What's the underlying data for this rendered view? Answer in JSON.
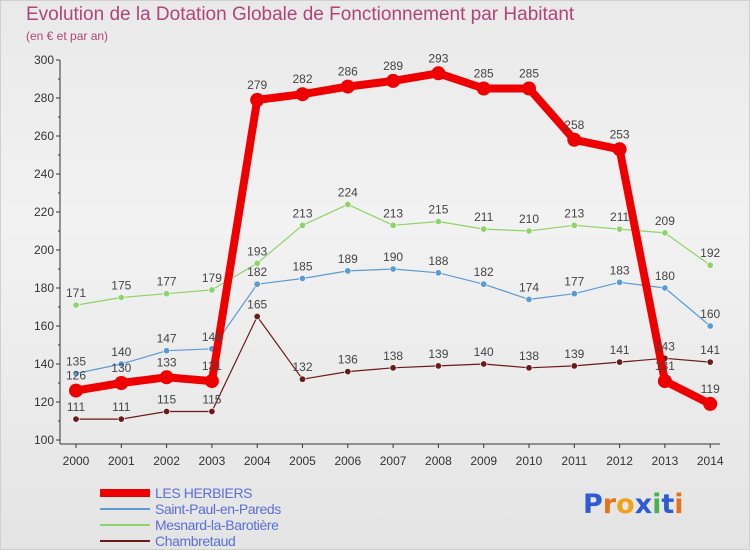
{
  "title": "Evolution de la Dotation Globale de Fonctionnement par Habitant",
  "subtitle": "(en € et par an)",
  "colors": {
    "title": "#b0457a",
    "legend_text": "#5a6fd6",
    "axis_text": "#333333"
  },
  "chart_data": {
    "type": "line",
    "categories": [
      "2000",
      "2001",
      "2002",
      "2003",
      "2004",
      "2005",
      "2006",
      "2007",
      "2008",
      "2009",
      "2010",
      "2011",
      "2012",
      "2013",
      "2014"
    ],
    "ylim": [
      100,
      300
    ],
    "yticks": [
      "100",
      "120",
      "140",
      "160",
      "180",
      "200",
      "220",
      "240",
      "260",
      "280",
      "300"
    ],
    "grid": false,
    "legend_position": "bottom-left",
    "series": [
      {
        "name": "Chambretaud",
        "color": "#6b1a1a",
        "width": 1.2,
        "point_radius": 3.2,
        "values": [
          111,
          111,
          115,
          115,
          165,
          132,
          136,
          138,
          139,
          140,
          138,
          139,
          141,
          143,
          141
        ]
      },
      {
        "name": "Mesnard-la-Barotière",
        "color": "#8fd36a",
        "width": 1.2,
        "point_radius": 3.2,
        "values": [
          171,
          175,
          177,
          179,
          193,
          213,
          224,
          213,
          215,
          211,
          210,
          213,
          211,
          209,
          192
        ]
      },
      {
        "name": "Saint-Paul-en-Pareds",
        "color": "#5b9bd5",
        "width": 1.2,
        "point_radius": 3.2,
        "values": [
          135,
          140,
          147,
          148,
          182,
          185,
          189,
          190,
          188,
          182,
          174,
          177,
          183,
          180,
          160
        ]
      },
      {
        "name": "LES HERBIERS",
        "color": "#ee0000",
        "width": 8,
        "point_radius": 7,
        "values": [
          126,
          130,
          133,
          131,
          279,
          282,
          286,
          289,
          293,
          285,
          285,
          258,
          253,
          131,
          119
        ]
      }
    ]
  },
  "legend": [
    {
      "name": "LES HERBIERS",
      "color": "#ee0000",
      "thickness": 8
    },
    {
      "name": "Saint-Paul-en-Pareds",
      "color": "#5b9bd5",
      "thickness": 2
    },
    {
      "name": "Mesnard-la-Barotière",
      "color": "#8fd36a",
      "thickness": 2
    },
    {
      "name": "Chambretaud",
      "color": "#6b1a1a",
      "thickness": 2
    }
  ],
  "logo": {
    "text": "Proxiti",
    "letters": [
      "P",
      "r",
      "o",
      "x",
      "i",
      "t",
      "i"
    ],
    "letter_colors": [
      "#2f5bd1",
      "#e8721c",
      "#f0a318",
      "#2f5bd1",
      "#4caf50",
      "#2f5bd1",
      "#e8721c"
    ]
  }
}
